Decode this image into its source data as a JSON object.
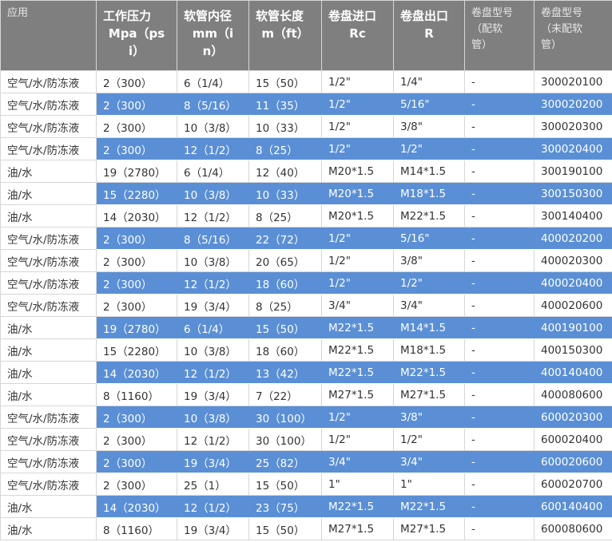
{
  "columns": [
    {
      "lines": [
        "应用"
      ],
      "style": "sub"
    },
    {
      "lines": [
        "工作压力",
        "Mpa（ps",
        "i）"
      ],
      "style": "main"
    },
    {
      "lines": [
        "软管内径",
        "mm（i",
        "n）"
      ],
      "style": "main"
    },
    {
      "lines": [
        "软管长度",
        "m（ft）"
      ],
      "style": "main"
    },
    {
      "lines": [
        "卷盘进口",
        "Rc"
      ],
      "style": "main"
    },
    {
      "lines": [
        "卷盘出口",
        "R"
      ],
      "style": "main"
    },
    {
      "lines": [
        "卷盘型号",
        "（配软",
        "管）"
      ],
      "style": "sub"
    },
    {
      "lines": [
        "卷盘型号",
        "（未配软",
        "管）"
      ],
      "style": "sub"
    }
  ],
  "rows": [
    {
      "highlight": false,
      "cells": [
        "空气/水/防冻液",
        "2（300）",
        "6（1/4）",
        "15（50）",
        "1/2\"",
        "1/4\"",
        "-",
        "300020100"
      ]
    },
    {
      "highlight": true,
      "cells": [
        "空气/水/防冻液",
        "2（300）",
        "8（5/16）",
        "11（35）",
        "1/2\"",
        "5/16\"",
        "-",
        "300020200"
      ]
    },
    {
      "highlight": false,
      "cells": [
        "空气/水/防冻液",
        "2（300）",
        "10（3/8）",
        "10（33）",
        "1/2\"",
        "3/8\"",
        "-",
        "300020300"
      ]
    },
    {
      "highlight": true,
      "cells": [
        "空气/水/防冻液",
        "2（300）",
        "12（1/2）",
        "8（25）",
        "1/2\"",
        "1/2\"",
        "-",
        "300020400"
      ]
    },
    {
      "highlight": false,
      "cells": [
        "油/水",
        "19（2780）",
        "6（1/4）",
        "12（40）",
        "M20*1.5",
        "M14*1.5",
        "-",
        "300190100"
      ]
    },
    {
      "highlight": true,
      "cells": [
        "油/水",
        "15（2280）",
        "10（3/8）",
        "10（33）",
        "M20*1.5",
        "M18*1.5",
        "-",
        "300150300"
      ]
    },
    {
      "highlight": false,
      "cells": [
        "油/水",
        "14（2030）",
        "12（1/2）",
        "8（25）",
        "M20*1.5",
        "M22*1.5",
        "-",
        "300140400"
      ]
    },
    {
      "highlight": true,
      "cells": [
        "空气/水/防冻液",
        "2（300）",
        "8（5/16）",
        "22（72）",
        "1/2\"",
        "5/16\"",
        "-",
        "400020200"
      ]
    },
    {
      "highlight": false,
      "cells": [
        "空气/水/防冻液",
        "2（300）",
        "10（3/8）",
        "20（65）",
        "1/2\"",
        "3/8\"",
        "-",
        "400020300"
      ]
    },
    {
      "highlight": true,
      "cells": [
        "空气/水/防冻液",
        "2（300）",
        "12（1/2）",
        "18（60）",
        "1/2\"",
        "1/2\"",
        "-",
        "400020400"
      ]
    },
    {
      "highlight": false,
      "cells": [
        "空气/水/防冻液",
        "2（300）",
        "19（3/4）",
        "8（25）",
        "3/4\"",
        "3/4\"",
        "-",
        "400020600"
      ]
    },
    {
      "highlight": true,
      "cells": [
        "油/水",
        "19（2780）",
        "6（1/4）",
        "15（50）",
        "M22*1.5",
        "M14*1.5",
        "-",
        "400190100"
      ]
    },
    {
      "highlight": false,
      "cells": [
        "油/水",
        "15（2280）",
        "10（3/8）",
        "18（60）",
        "M22*1.5",
        "M18*1.5",
        "-",
        "400150300"
      ]
    },
    {
      "highlight": true,
      "cells": [
        "油/水",
        "14（2030）",
        "12（1/2）",
        "13（42）",
        "M22*1.5",
        "M22*1.5",
        "-",
        "400140400"
      ]
    },
    {
      "highlight": false,
      "cells": [
        "油/水",
        "8（1160）",
        "19（3/4）",
        "7（22）",
        "M27*1.5",
        "M27*1.5",
        "-",
        "400080600"
      ]
    },
    {
      "highlight": true,
      "cells": [
        "空气/水/防冻液",
        "2（300）",
        "10（3/8）",
        "30（100）",
        "1/2\"",
        "3/8\"",
        "-",
        "600020300"
      ]
    },
    {
      "highlight": false,
      "cells": [
        "空气/水/防冻液",
        "2（300）",
        "12（1/2）",
        "30（100）",
        "1/2\"",
        "1/2\"",
        "-",
        "600020400"
      ]
    },
    {
      "highlight": true,
      "cells": [
        "空气/水/防冻液",
        "2（300）",
        "19（3/4）",
        "25（82）",
        "3/4\"",
        "3/4\"",
        "-",
        "600020600"
      ]
    },
    {
      "highlight": false,
      "cells": [
        "空气/水/防冻液",
        "2（300）",
        "25（1）",
        "15（50）",
        "1\"",
        "1\"",
        "-",
        "600020700"
      ]
    },
    {
      "highlight": true,
      "cells": [
        "油/水",
        "14（2030）",
        "12（1/2）",
        "23（75）",
        "M22*1.5",
        "M22*1.5",
        "-",
        "600140400"
      ]
    },
    {
      "highlight": false,
      "cells": [
        "油/水",
        "8（1160）",
        "19（3/4）",
        "15（50）",
        "M27*1.5",
        "M27*1.5",
        "-",
        "600080600"
      ]
    }
  ],
  "colors": {
    "header_bg": "#7f7f7f",
    "highlight_bg": "#5a8fd6"
  }
}
